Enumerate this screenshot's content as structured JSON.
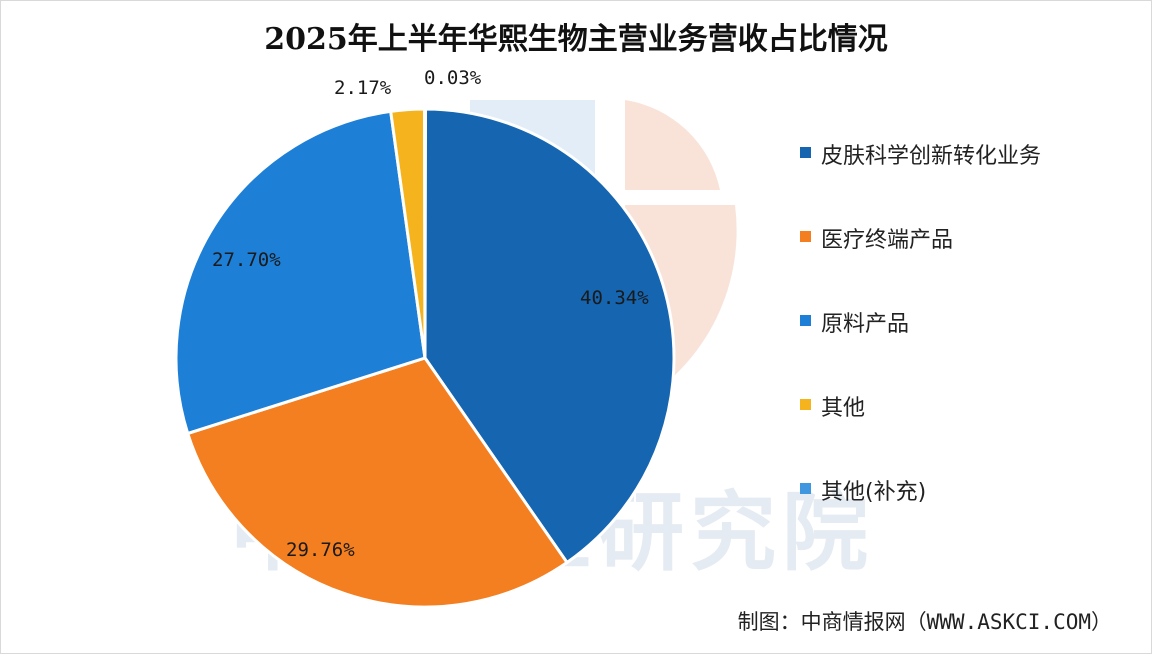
{
  "chart_data": {
    "type": "pie",
    "title": "2025年上半年华熙生物主营业务营收占比情况",
    "slices": [
      {
        "name": "皮肤科学创新转化业务",
        "value": 40.34,
        "label": "40.34%",
        "color": "#1565b0"
      },
      {
        "name": "医疗终端产品",
        "value": 29.76,
        "label": "29.76%",
        "color": "#f47f20"
      },
      {
        "name": "原料产品",
        "value": 27.7,
        "label": "27.70%",
        "color": "#1e7fd6"
      },
      {
        "name": "其他",
        "value": 2.17,
        "label": "2.17%",
        "color": "#f5b31d"
      },
      {
        "name": "其他(补充)",
        "value": 0.03,
        "label": "0.03%",
        "color": "#3f97e0"
      }
    ],
    "legend_position": "right"
  },
  "watermark": {
    "text": "中商产业研究院"
  },
  "source": "制图：中商情报网（WWW.ASKCI.COM）"
}
